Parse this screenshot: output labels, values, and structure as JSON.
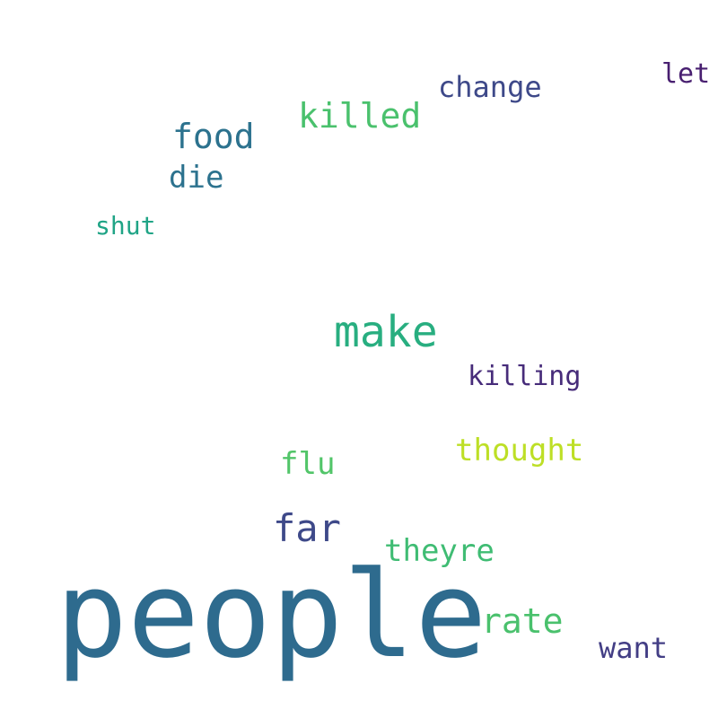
{
  "words": [
    {
      "text": "people",
      "color": "#2e6b8e"
    },
    {
      "text": "make",
      "color": "#28ae80"
    },
    {
      "text": "far",
      "color": "#3e4989"
    },
    {
      "text": "killed",
      "color": "#4ac16d"
    },
    {
      "text": "food",
      "color": "#2c728e"
    },
    {
      "text": "rate",
      "color": "#4ac16d"
    },
    {
      "text": "theyre",
      "color": "#3fbc73"
    },
    {
      "text": "thought",
      "color": "#bddf26"
    },
    {
      "text": "die",
      "color": "#2c728e"
    },
    {
      "text": "change",
      "color": "#3e4989"
    },
    {
      "text": "flu",
      "color": "#52c569"
    },
    {
      "text": "want",
      "color": "#433e85"
    },
    {
      "text": "let",
      "color": "#481f70"
    },
    {
      "text": "killing",
      "color": "#472c7a"
    },
    {
      "text": "shut",
      "color": "#20a486"
    }
  ]
}
